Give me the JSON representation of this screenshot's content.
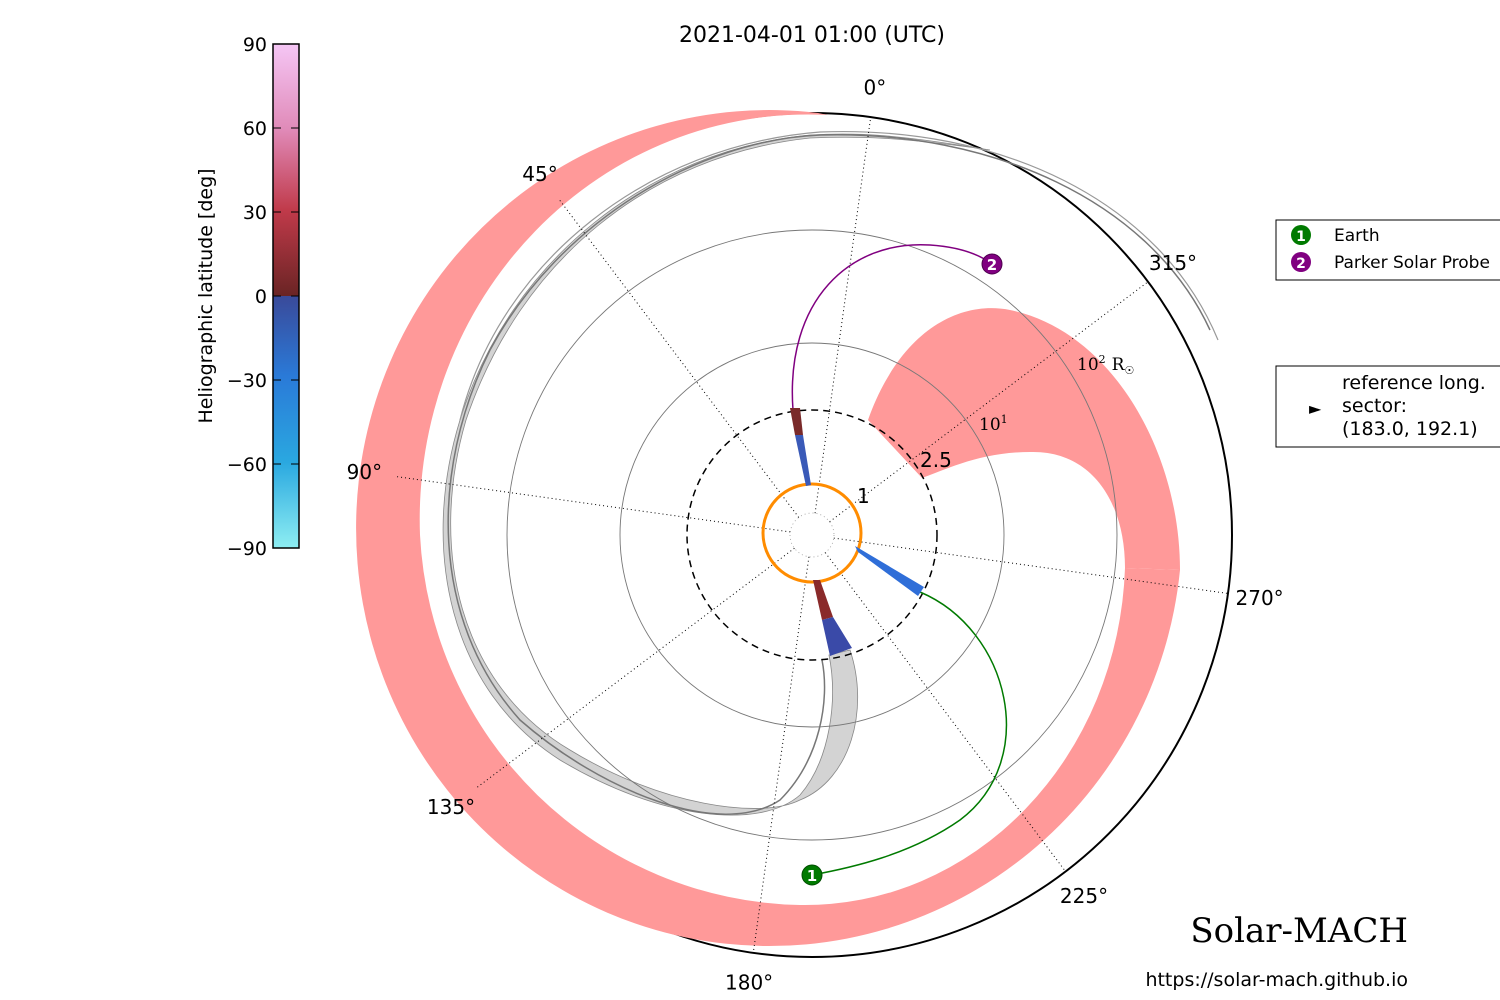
{
  "chart_data": {
    "type": "polar-orbit-plot",
    "title": "2021-04-01 01:00 (UTC)",
    "angle_ticks": [
      {
        "deg": 0,
        "label": "0°"
      },
      {
        "deg": 45,
        "label": "45°"
      },
      {
        "deg": 90,
        "label": "90°"
      },
      {
        "deg": 135,
        "label": "135°"
      },
      {
        "deg": 180,
        "label": "180°"
      },
      {
        "deg": 225,
        "label": "225°"
      },
      {
        "deg": 270,
        "label": "270°"
      },
      {
        "deg": 315,
        "label": "315°"
      }
    ],
    "radial_labels": {
      "r1": "1",
      "r2_5": "2.5",
      "r10_base": "10",
      "r10_exp": "1",
      "r100_base": "10",
      "r100_exp": "2",
      "r100_unit": "R",
      "r100_unit_sub": "☉"
    },
    "colorbar": {
      "label": "Heliographic latitude [deg]",
      "ticks": [
        "90",
        "60",
        "30",
        "0",
        "−30",
        "−60",
        "−90"
      ]
    },
    "bodies": [
      {
        "id": "1",
        "name": "Earth",
        "color": "#007a00"
      },
      {
        "id": "2",
        "name": "Parker Solar Probe",
        "color": "#800080"
      }
    ],
    "reference": {
      "marker": "►",
      "line1": "reference long.",
      "line2": "sector:",
      "line3": "(183.0, 192.1)"
    },
    "colors": {
      "sector": "#ff9999",
      "neutral_sheet": "#cccccc",
      "source_surface_ring": "#ff8c00",
      "earth": "#007a00",
      "psp": "#800080"
    }
  },
  "branding": {
    "name": "Solar-MACH",
    "url": "https://solar-mach.github.io"
  }
}
